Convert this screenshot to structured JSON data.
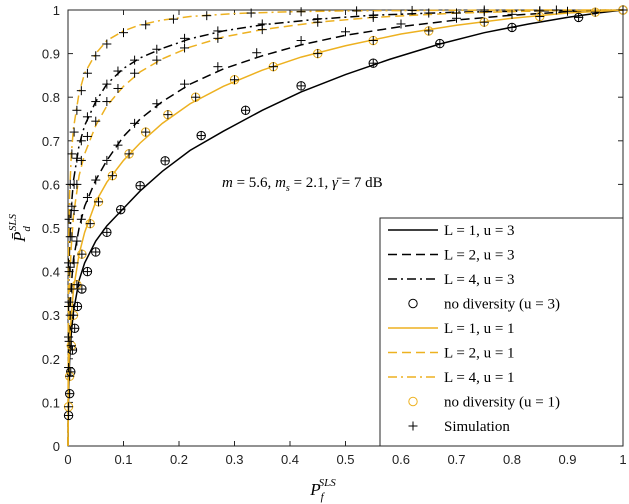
{
  "chart_data": {
    "type": "line",
    "xlabel": "P_f^{SLS}",
    "ylabel": "P̄_d^{SLS}",
    "xlim": [
      0,
      1
    ],
    "ylim": [
      0,
      1
    ],
    "xticks": [
      "0",
      "0.1",
      "0.2",
      "0.3",
      "0.4",
      "0.5",
      "0.6",
      "0.7",
      "0.8",
      "0.9",
      "1"
    ],
    "yticks": [
      "0",
      "0.1",
      "0.2",
      "0.3",
      "0.4",
      "0.5",
      "0.6",
      "0.7",
      "0.8",
      "0.9",
      "1"
    ],
    "annotation": "m = 5.6, m_s = 2.1, γ̄ = 7 dB",
    "legend_position": "bottom-right",
    "grid": false,
    "colors": {
      "black": "#000000",
      "gold": "#EDB120"
    },
    "series": [
      {
        "name": "L = 1, u = 3",
        "color": "#000000",
        "dash": "solid",
        "x": [
          0,
          0.001,
          0.003,
          0.006,
          0.01,
          0.02,
          0.03,
          0.05,
          0.07,
          0.1,
          0.13,
          0.17,
          0.22,
          0.28,
          0.35,
          0.42,
          0.5,
          0.58,
          0.67,
          0.75,
          0.83,
          0.9,
          0.96,
          1
        ],
        "y": [
          0,
          0.12,
          0.2,
          0.26,
          0.31,
          0.38,
          0.42,
          0.47,
          0.505,
          0.545,
          0.585,
          0.63,
          0.678,
          0.722,
          0.77,
          0.812,
          0.852,
          0.887,
          0.922,
          0.948,
          0.968,
          0.983,
          0.994,
          1
        ]
      },
      {
        "name": "L = 2, u = 3",
        "color": "#000000",
        "dash": "dashed",
        "x": [
          0,
          0.001,
          0.003,
          0.006,
          0.01,
          0.02,
          0.03,
          0.05,
          0.07,
          0.1,
          0.13,
          0.17,
          0.22,
          0.28,
          0.35,
          0.42,
          0.5,
          0.6,
          0.7,
          0.8,
          0.9,
          1
        ],
        "y": [
          0,
          0.2,
          0.3,
          0.37,
          0.43,
          0.5,
          0.55,
          0.61,
          0.655,
          0.71,
          0.75,
          0.79,
          0.83,
          0.865,
          0.895,
          0.92,
          0.942,
          0.962,
          0.977,
          0.988,
          0.996,
          1
        ]
      },
      {
        "name": "L = 4, u = 3",
        "color": "#000000",
        "dash": "dashdot",
        "x": [
          0,
          0.001,
          0.003,
          0.006,
          0.01,
          0.02,
          0.03,
          0.05,
          0.07,
          0.1,
          0.13,
          0.17,
          0.22,
          0.28,
          0.35,
          0.45,
          0.55,
          0.7,
          0.85,
          1
        ],
        "y": [
          0,
          0.35,
          0.47,
          0.55,
          0.61,
          0.69,
          0.735,
          0.79,
          0.83,
          0.866,
          0.89,
          0.912,
          0.934,
          0.952,
          0.966,
          0.979,
          0.988,
          0.995,
          0.998,
          1
        ]
      },
      {
        "name": "no diversity (u = 3)",
        "color": "#000000",
        "marker": "circle",
        "x": [
          0.001,
          0.003,
          0.005,
          0.008,
          0.012,
          0.017,
          0.025,
          0.035,
          0.05,
          0.07,
          0.095,
          0.13,
          0.175,
          0.24,
          0.32,
          0.42,
          0.55,
          0.67,
          0.8,
          0.92,
          1
        ],
        "y": [
          0.07,
          0.12,
          0.17,
          0.22,
          0.27,
          0.32,
          0.36,
          0.4,
          0.445,
          0.49,
          0.542,
          0.597,
          0.654,
          0.712,
          0.77,
          0.826,
          0.878,
          0.923,
          0.96,
          0.983,
          1
        ]
      },
      {
        "name": "L = 1, u = 1",
        "color": "#EDB120",
        "dash": "solid",
        "x": [
          0,
          0.001,
          0.003,
          0.006,
          0.01,
          0.02,
          0.03,
          0.05,
          0.07,
          0.1,
          0.13,
          0.17,
          0.22,
          0.28,
          0.35,
          0.42,
          0.5,
          0.6,
          0.7,
          0.8,
          0.9,
          1
        ],
        "y": [
          0,
          0.16,
          0.24,
          0.3,
          0.36,
          0.44,
          0.49,
          0.56,
          0.605,
          0.655,
          0.695,
          0.74,
          0.785,
          0.825,
          0.862,
          0.892,
          0.918,
          0.945,
          0.965,
          0.981,
          0.993,
          1
        ]
      },
      {
        "name": "L = 2, u = 1",
        "color": "#EDB120",
        "dash": "dashed",
        "x": [
          0,
          0.001,
          0.003,
          0.006,
          0.01,
          0.02,
          0.03,
          0.05,
          0.07,
          0.1,
          0.13,
          0.17,
          0.22,
          0.28,
          0.35,
          0.45,
          0.55,
          0.7,
          0.85,
          1
        ],
        "y": [
          0,
          0.27,
          0.38,
          0.46,
          0.53,
          0.62,
          0.67,
          0.735,
          0.78,
          0.825,
          0.858,
          0.888,
          0.915,
          0.938,
          0.955,
          0.972,
          0.983,
          0.993,
          0.998,
          1
        ]
      },
      {
        "name": "L = 4, u = 1",
        "color": "#EDB120",
        "dash": "dashdot",
        "x": [
          0,
          0.001,
          0.003,
          0.006,
          0.01,
          0.02,
          0.03,
          0.05,
          0.07,
          0.1,
          0.13,
          0.17,
          0.22,
          0.3,
          0.4,
          0.5,
          0.65,
          0.8,
          1
        ],
        "y": [
          0,
          0.45,
          0.58,
          0.67,
          0.73,
          0.81,
          0.855,
          0.9,
          0.93,
          0.952,
          0.966,
          0.977,
          0.985,
          0.992,
          0.996,
          0.998,
          0.999,
          1,
          1
        ]
      },
      {
        "name": "no diversity (u = 1)",
        "color": "#EDB120",
        "marker": "circle",
        "x": [
          0.001,
          0.003,
          0.006,
          0.01,
          0.016,
          0.025,
          0.04,
          0.055,
          0.08,
          0.11,
          0.14,
          0.18,
          0.23,
          0.3,
          0.37,
          0.45,
          0.55,
          0.65,
          0.75,
          0.85,
          0.95,
          1
        ],
        "y": [
          0.09,
          0.16,
          0.23,
          0.3,
          0.37,
          0.44,
          0.51,
          0.56,
          0.62,
          0.67,
          0.72,
          0.76,
          0.8,
          0.84,
          0.87,
          0.9,
          0.93,
          0.952,
          0.972,
          0.985,
          0.995,
          1
        ]
      },
      {
        "name": "Simulation",
        "color": "#000000",
        "marker": "plus",
        "groups": [
          {
            "x": [
              0.001,
              0.003,
              0.005,
              0.008,
              0.012,
              0.017,
              0.025,
              0.035,
              0.05,
              0.07,
              0.095,
              0.13,
              0.175,
              0.24,
              0.32,
              0.42,
              0.55,
              0.67,
              0.8,
              0.92,
              1
            ],
            "y": [
              0.07,
              0.12,
              0.17,
              0.22,
              0.27,
              0.32,
              0.36,
              0.4,
              0.445,
              0.49,
              0.542,
              0.597,
              0.654,
              0.712,
              0.77,
              0.826,
              0.878,
              0.923,
              0.96,
              0.983,
              1
            ]
          },
          {
            "x": [
              0.001,
              0.002,
              0.004,
              0.007,
              0.011,
              0.016,
              0.024,
              0.035,
              0.05,
              0.07,
              0.09,
              0.12,
              0.16,
              0.21,
              0.27,
              0.34,
              0.42,
              0.5,
              0.6,
              0.7,
              0.8,
              0.9,
              1
            ],
            "y": [
              0.18,
              0.24,
              0.3,
              0.36,
              0.42,
              0.47,
              0.52,
              0.57,
              0.61,
              0.655,
              0.69,
              0.74,
              0.785,
              0.83,
              0.87,
              0.902,
              0.93,
              0.95,
              0.968,
              0.981,
              0.99,
              0.997,
              1
            ]
          },
          {
            "x": [
              0.001,
              0.002,
              0.004,
              0.007,
              0.011,
              0.016,
              0.024,
              0.035,
              0.05,
              0.07,
              0.09,
              0.12,
              0.16,
              0.21,
              0.27,
              0.35,
              0.45,
              0.55,
              0.65,
              0.75,
              0.85,
              1
            ],
            "y": [
              0.32,
              0.4,
              0.48,
              0.55,
              0.6,
              0.66,
              0.7,
              0.755,
              0.79,
              0.83,
              0.86,
              0.885,
              0.91,
              0.935,
              0.952,
              0.968,
              0.98,
              0.988,
              0.993,
              0.996,
              0.998,
              1
            ]
          },
          {
            "x": [
              0.001,
              0.003,
              0.006,
              0.01,
              0.016,
              0.025,
              0.04,
              0.055,
              0.08,
              0.11,
              0.14,
              0.18,
              0.23,
              0.3,
              0.37,
              0.45,
              0.55,
              0.65,
              0.75,
              0.85,
              0.95,
              1
            ],
            "y": [
              0.09,
              0.16,
              0.23,
              0.3,
              0.37,
              0.44,
              0.51,
              0.56,
              0.62,
              0.67,
              0.72,
              0.76,
              0.8,
              0.84,
              0.87,
              0.9,
              0.93,
              0.952,
              0.972,
              0.985,
              0.995,
              1
            ]
          },
          {
            "x": [
              0.001,
              0.002,
              0.004,
              0.007,
              0.011,
              0.016,
              0.024,
              0.035,
              0.05,
              0.07,
              0.09,
              0.12,
              0.16,
              0.21,
              0.27,
              0.35,
              0.45,
              0.55,
              0.7,
              0.85,
              1
            ],
            "y": [
              0.25,
              0.33,
              0.41,
              0.48,
              0.54,
              0.6,
              0.655,
              0.71,
              0.745,
              0.79,
              0.82,
              0.855,
              0.885,
              0.913,
              0.935,
              0.955,
              0.972,
              0.983,
              0.993,
              0.998,
              1
            ]
          },
          {
            "x": [
              0.001,
              0.002,
              0.004,
              0.007,
              0.011,
              0.016,
              0.024,
              0.035,
              0.05,
              0.07,
              0.1,
              0.14,
              0.19,
              0.25,
              0.33,
              0.42,
              0.52,
              0.62,
              0.75,
              0.88,
              1
            ],
            "y": [
              0.42,
              0.52,
              0.6,
              0.67,
              0.72,
              0.77,
              0.815,
              0.855,
              0.895,
              0.922,
              0.948,
              0.966,
              0.979,
              0.987,
              0.993,
              0.996,
              0.998,
              0.999,
              1,
              1,
              1
            ]
          }
        ]
      }
    ]
  }
}
